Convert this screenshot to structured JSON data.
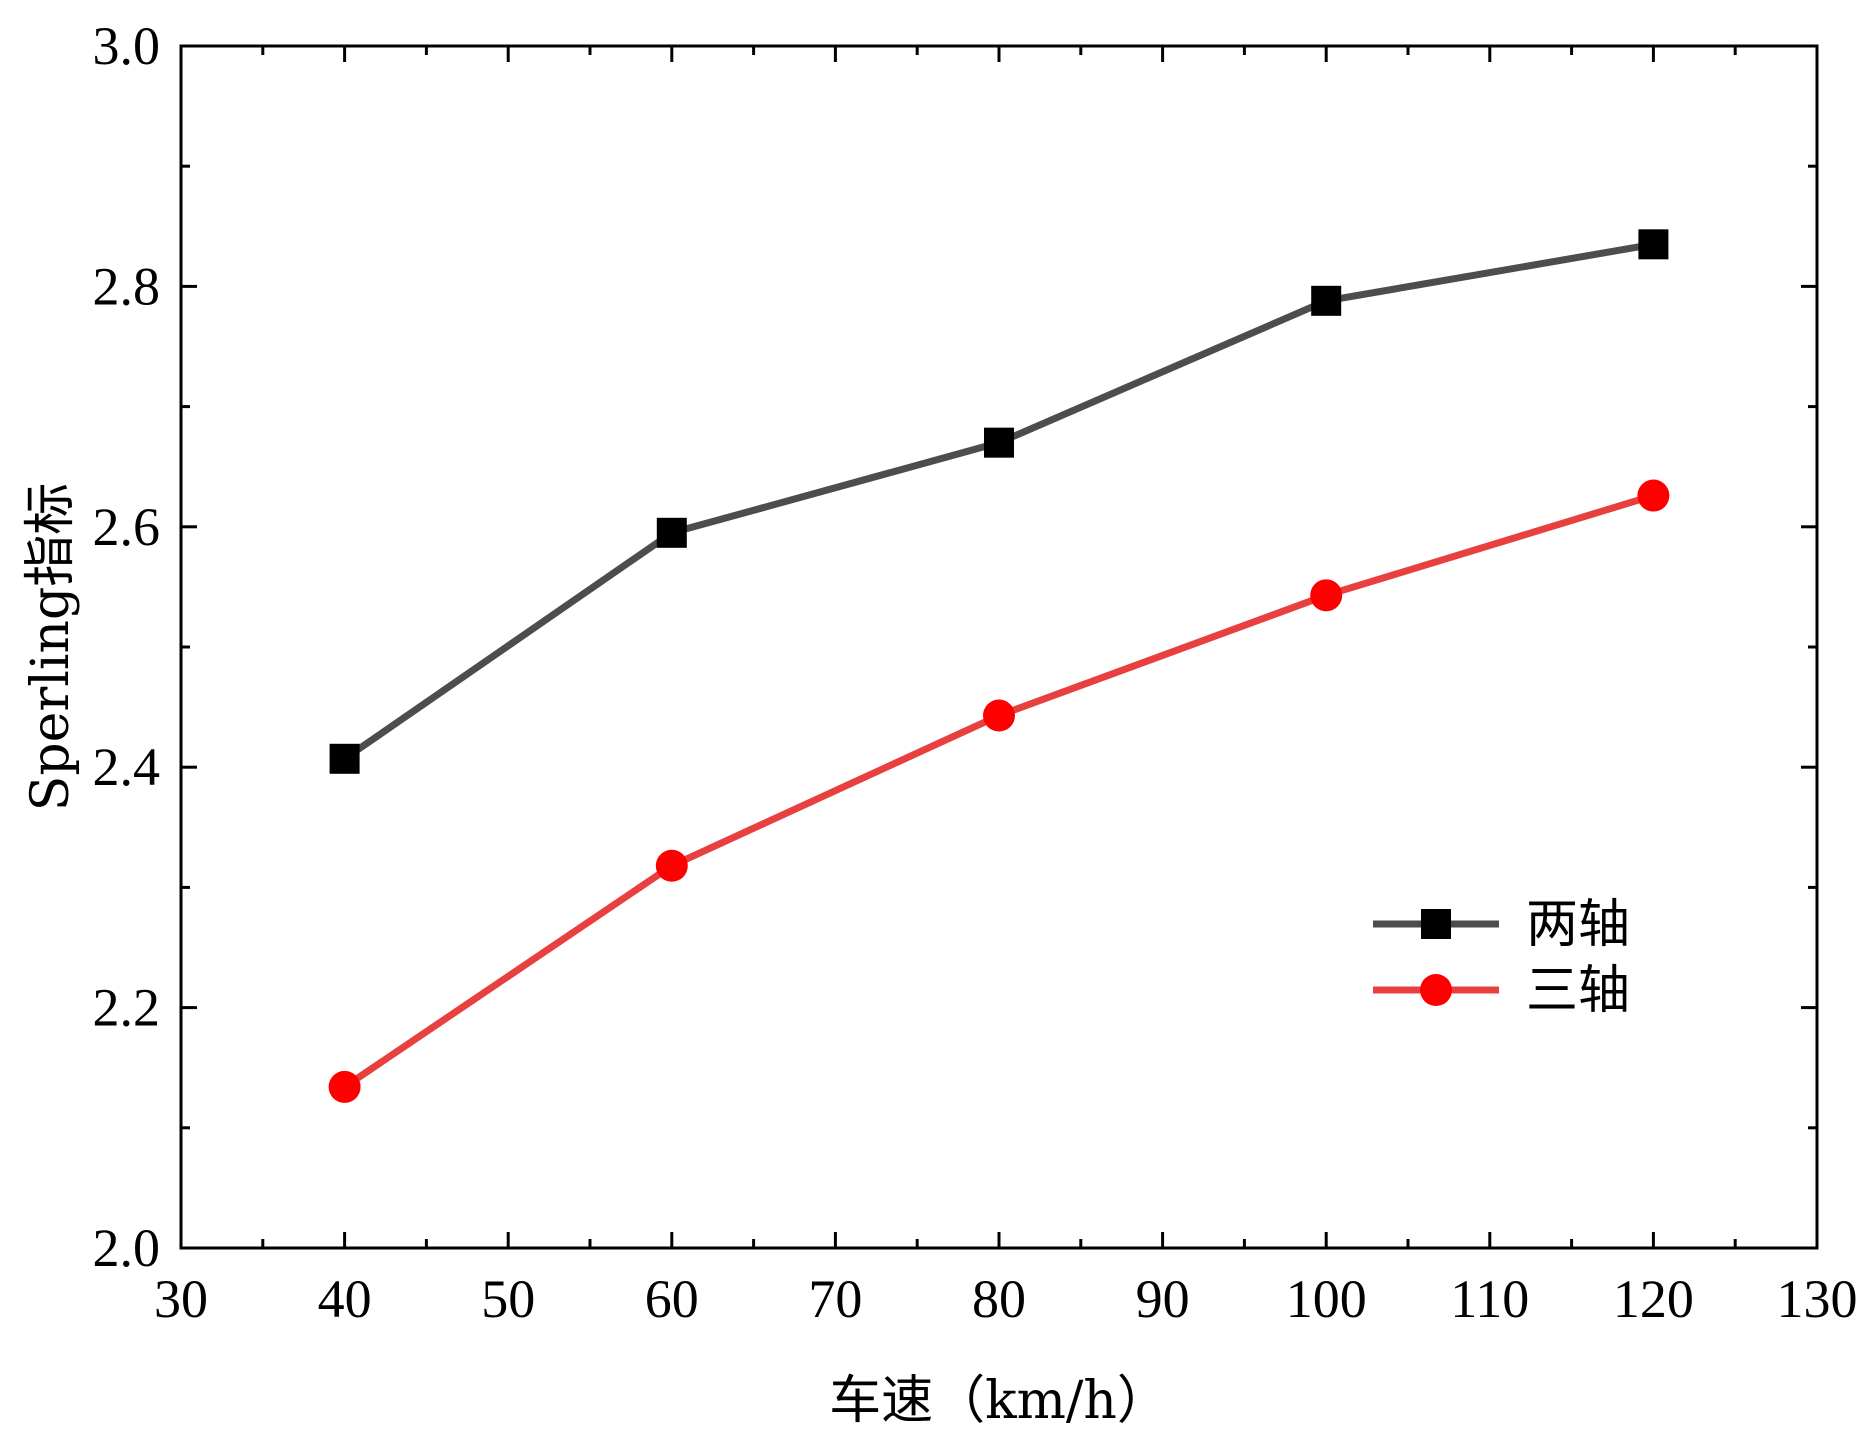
{
  "chart_data": {
    "type": "line",
    "title": "",
    "xlabel": "车速（km/h）",
    "ylabel": "Sperling指标",
    "xlim": [
      30,
      130
    ],
    "ylim": [
      2.0,
      3.0
    ],
    "x_major_ticks": [
      30,
      40,
      50,
      60,
      70,
      80,
      90,
      100,
      110,
      120,
      130
    ],
    "x_minor_ticks": [
      35,
      45,
      55,
      65,
      75,
      85,
      95,
      105,
      115,
      125
    ],
    "y_major_ticks": [
      "2.0",
      "2.2",
      "2.4",
      "2.6",
      "2.8",
      "3.0"
    ],
    "y_minor_ticks": [
      2.1,
      2.3,
      2.5,
      2.7,
      2.9
    ],
    "grid": false,
    "legend_position": "lower-right",
    "x": [
      40,
      60,
      80,
      100,
      120
    ],
    "series": [
      {
        "name": "两轴",
        "values": [
          2.407,
          2.595,
          2.67,
          2.788,
          2.835
        ],
        "color": "#4d4d4d",
        "marker": "square",
        "marker_color": "#000000"
      },
      {
        "name": "三轴",
        "values": [
          2.134,
          2.318,
          2.443,
          2.543,
          2.626
        ],
        "color": "#e8403f",
        "marker": "circle",
        "marker_color": "#ff0000"
      }
    ]
  }
}
